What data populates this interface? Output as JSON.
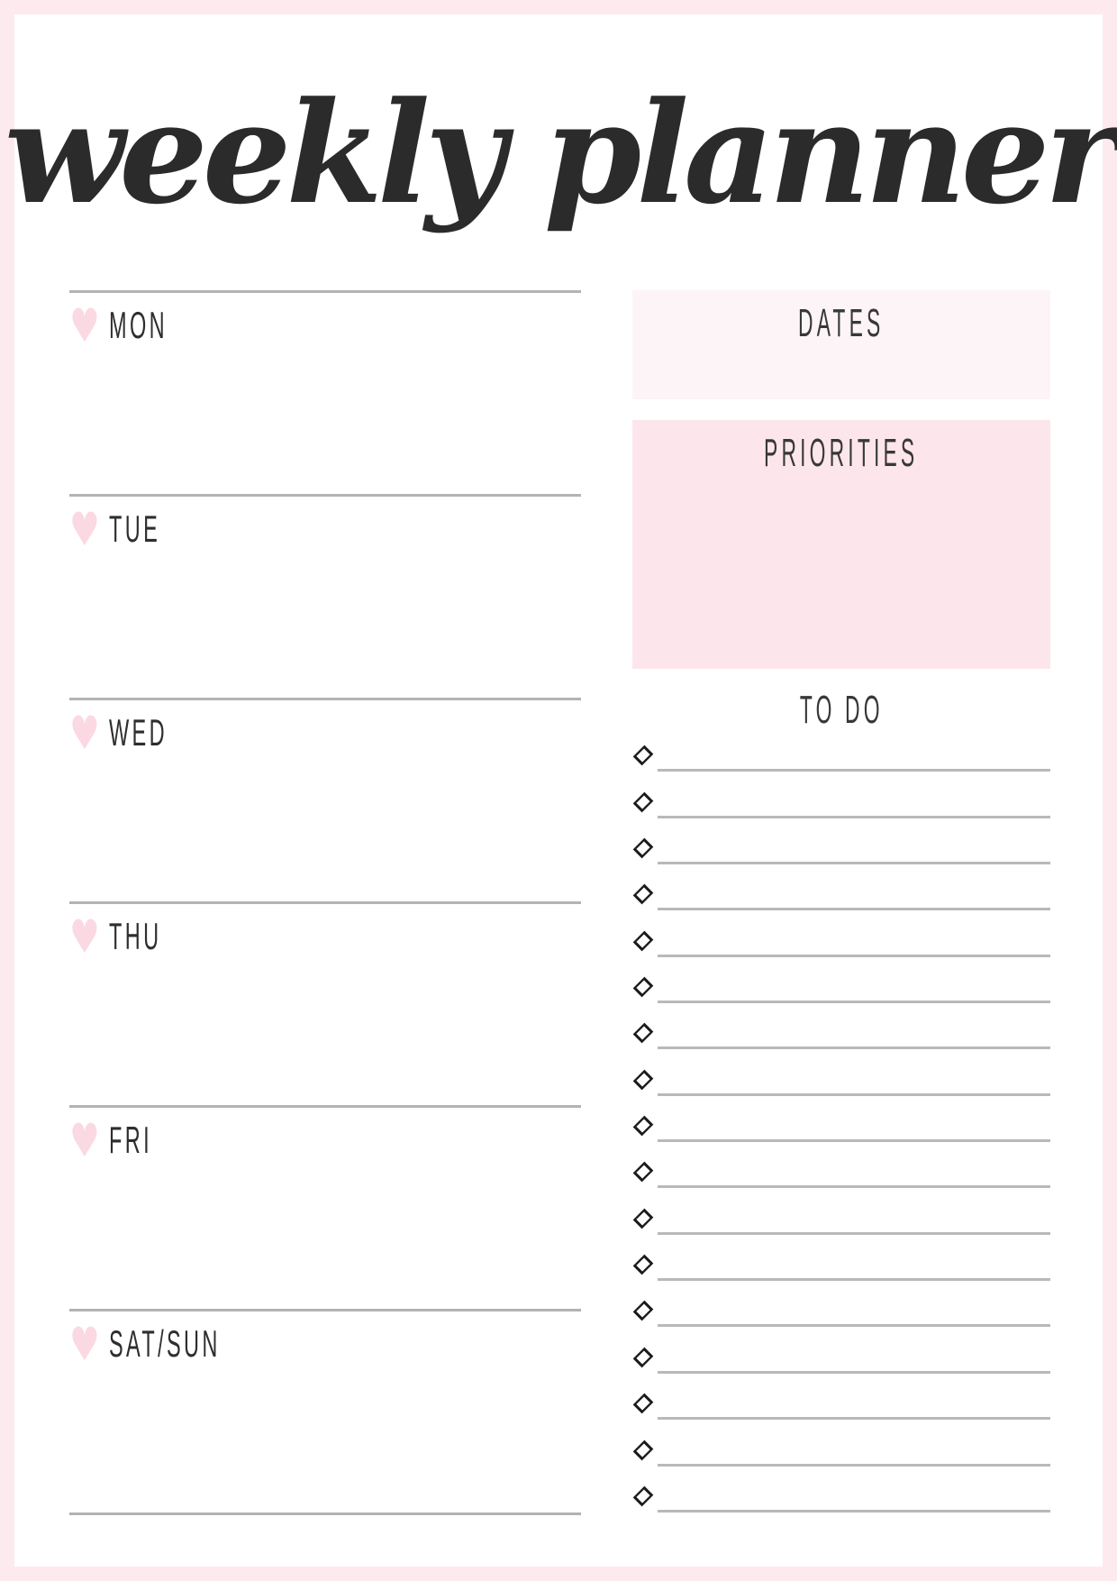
{
  "page": {
    "title": "weekly planner"
  },
  "icons": {
    "heart": "♥",
    "diamond_bullet": "rotated-square-outline"
  },
  "colors": {
    "page_border": "#fdeaef",
    "dates_box_bg": "#fdf4f7",
    "priorities_box_bg": "#fce6ec",
    "heart_pink": "#fbd9e3",
    "rule_line_gray": "#b3b3b3",
    "text_dark": "#2e2e2e"
  },
  "days": {
    "items": [
      "MON",
      "TUE",
      "WED",
      "THU",
      "FRI",
      "SAT/SUN"
    ]
  },
  "dates": {
    "label": "DATES",
    "value": ""
  },
  "priorities": {
    "label": "PRIORITIES",
    "value": ""
  },
  "todo": {
    "label": "TO DO",
    "items": [
      "",
      "",
      "",
      "",
      "",
      "",
      "",
      "",
      "",
      "",
      "",
      "",
      "",
      "",
      "",
      "",
      ""
    ]
  }
}
